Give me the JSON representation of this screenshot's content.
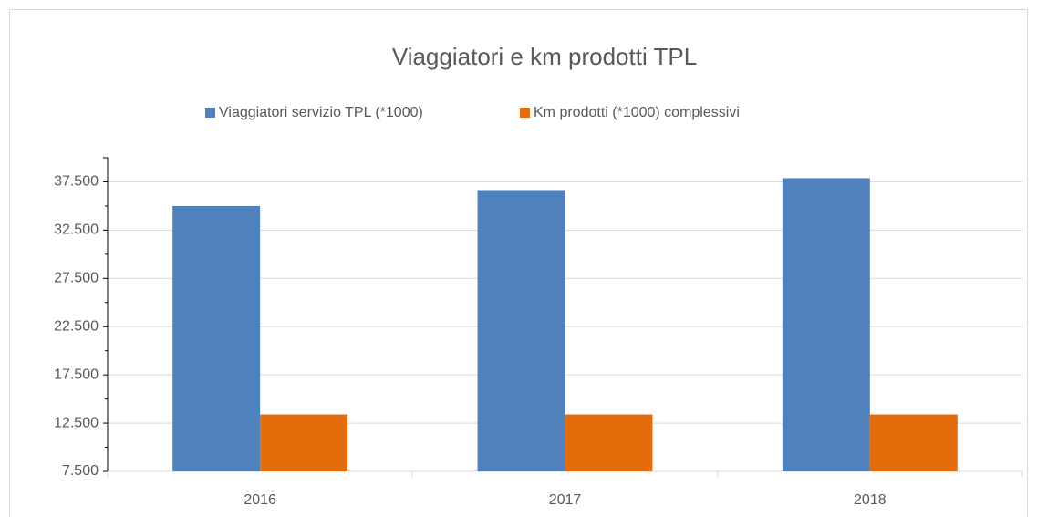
{
  "chart_data": {
    "type": "bar",
    "title": "Viaggiatori e km prodotti TPL",
    "categories": [
      "2016",
      "2017",
      "2018"
    ],
    "series": [
      {
        "name": "Viaggiatori servizio TPL (*1000)",
        "color": "#4f81bd",
        "values": [
          35000,
          36650,
          37880
        ]
      },
      {
        "name": "Km prodotti (*1000) complessivi",
        "color": "#e46c0a",
        "values": [
          13400,
          13400,
          13400
        ]
      }
    ],
    "ylim": [
      7500,
      40000
    ],
    "yticks": [
      {
        "value": 7500,
        "label": "7.500"
      },
      {
        "value": 12500,
        "label": "12.500"
      },
      {
        "value": 17500,
        "label": "17.500"
      },
      {
        "value": 22500,
        "label": "22.500"
      },
      {
        "value": 27500,
        "label": "27.500"
      },
      {
        "value": 32500,
        "label": "32.500"
      },
      {
        "value": 37500,
        "label": "37.500"
      }
    ],
    "grid": true,
    "legend": "top"
  }
}
